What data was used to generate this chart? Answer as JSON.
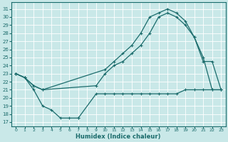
{
  "xlabel": "Humidex (Indice chaleur)",
  "bg_color": "#c9e8e8",
  "line_color": "#1a6b6b",
  "grid_color": "#b0d8d8",
  "xlim": [
    -0.5,
    23.5
  ],
  "ylim": [
    16.5,
    31.8
  ],
  "yticks": [
    17,
    18,
    19,
    20,
    21,
    22,
    23,
    24,
    25,
    26,
    27,
    28,
    29,
    30,
    31
  ],
  "xticks": [
    0,
    1,
    2,
    3,
    4,
    5,
    6,
    7,
    8,
    9,
    10,
    11,
    12,
    13,
    14,
    15,
    16,
    17,
    18,
    19,
    20,
    21,
    22,
    23
  ],
  "line1_x": [
    0,
    1,
    2,
    3,
    4,
    5,
    6,
    7
  ],
  "line1_y": [
    23,
    22.5,
    21,
    19,
    18.5,
    17.5,
    17.5,
    17.5
  ],
  "line2_x": [
    0,
    1,
    2,
    3,
    9,
    10,
    11,
    12,
    13,
    14,
    15,
    16,
    17,
    18,
    19,
    20,
    21,
    22,
    23
  ],
  "line2_y": [
    23,
    22.5,
    21.5,
    21.0,
    21.5,
    23.0,
    24.0,
    24.5,
    25.5,
    26.5,
    28.0,
    30.0,
    30.5,
    30.0,
    29.0,
    27.5,
    24.5,
    24.5,
    21.0
  ],
  "line3_x": [
    0,
    1,
    2,
    3,
    10,
    11,
    12,
    13,
    14,
    15,
    16,
    17,
    18,
    19,
    20,
    21,
    22,
    23
  ],
  "line3_y": [
    23,
    22.5,
    21.5,
    21.0,
    23.5,
    24.5,
    25.5,
    26.5,
    28.0,
    30.0,
    30.5,
    31.0,
    30.5,
    29.5,
    27.5,
    25.0,
    21.0,
    21.0
  ],
  "line4_x": [
    7,
    9,
    10,
    11,
    12,
    13,
    14,
    15,
    16,
    17,
    18,
    19,
    20,
    21,
    22,
    23
  ],
  "line4_y": [
    17.5,
    20.5,
    20.5,
    20.5,
    20.5,
    20.5,
    20.5,
    20.5,
    20.5,
    20.5,
    20.5,
    21.0,
    21.0,
    21.0,
    21.0,
    21.0
  ]
}
